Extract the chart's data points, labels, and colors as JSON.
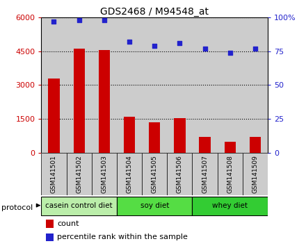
{
  "title": "GDS2468 / M94548_at",
  "samples": [
    "GSM141501",
    "GSM141502",
    "GSM141503",
    "GSM141504",
    "GSM141505",
    "GSM141506",
    "GSM141507",
    "GSM141508",
    "GSM141509"
  ],
  "counts": [
    3300,
    4600,
    4550,
    1600,
    1350,
    1550,
    700,
    500,
    700
  ],
  "percentile_ranks": [
    97,
    98,
    98,
    82,
    79,
    81,
    77,
    74,
    77
  ],
  "ylim_left": [
    0,
    6000
  ],
  "ylim_right": [
    0,
    100
  ],
  "yticks_left": [
    0,
    1500,
    3000,
    4500,
    6000
  ],
  "ytick_labels_left": [
    "0",
    "1500",
    "3000",
    "4500",
    "6000"
  ],
  "yticks_right": [
    0,
    25,
    50,
    75,
    100
  ],
  "ytick_labels_right": [
    "0",
    "25",
    "50",
    "75",
    "100%"
  ],
  "bar_color": "#cc0000",
  "scatter_color": "#2222cc",
  "protocol_groups": [
    {
      "label": "casein control diet",
      "start": 0,
      "end": 3,
      "color": "#bbeeaa"
    },
    {
      "label": "soy diet",
      "start": 3,
      "end": 6,
      "color": "#55dd44"
    },
    {
      "label": "whey diet",
      "start": 6,
      "end": 9,
      "color": "#33cc33"
    }
  ],
  "protocol_label": "protocol",
  "legend_count_label": "count",
  "legend_percentile_label": "percentile rank within the sample",
  "bar_width": 0.45,
  "tick_label_color_left": "#cc0000",
  "tick_label_color_right": "#2222cc",
  "bg_color_plot": "#ffffff",
  "sample_bg_color": "#cccccc",
  "plot_bg_color": "#ffffff"
}
